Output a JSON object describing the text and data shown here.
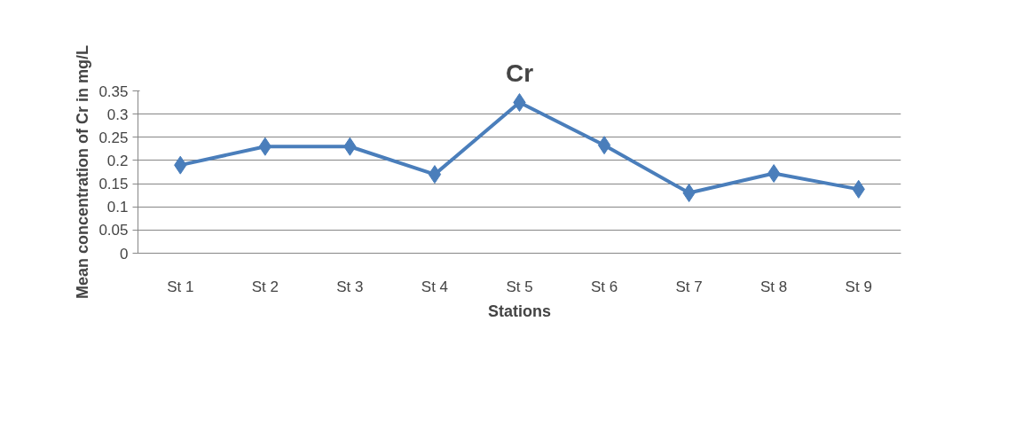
{
  "chart_data": {
    "type": "line",
    "title": "Cr",
    "xlabel": "Stations",
    "ylabel": "Mean concentration of Cr in mg/L",
    "categories": [
      "St 1",
      "St 2",
      "St 3",
      "St 4",
      "St 5",
      "St 6",
      "St 7",
      "St 8",
      "St 9"
    ],
    "series": [
      {
        "color": "#4a7ebb",
        "values": [
          0.19,
          0.23,
          0.23,
          0.17,
          0.325,
          0.233,
          0.13,
          0.172,
          0.138
        ]
      }
    ],
    "ylim": [
      0,
      0.35
    ],
    "yticks": [
      0,
      {
        "value": 0.05,
        "label": "0.05"
      },
      0.1,
      0.15,
      0.2,
      0.25,
      0.3,
      0.35
    ],
    "grid": "y",
    "marker": "diamond",
    "line_style": "solid"
  }
}
